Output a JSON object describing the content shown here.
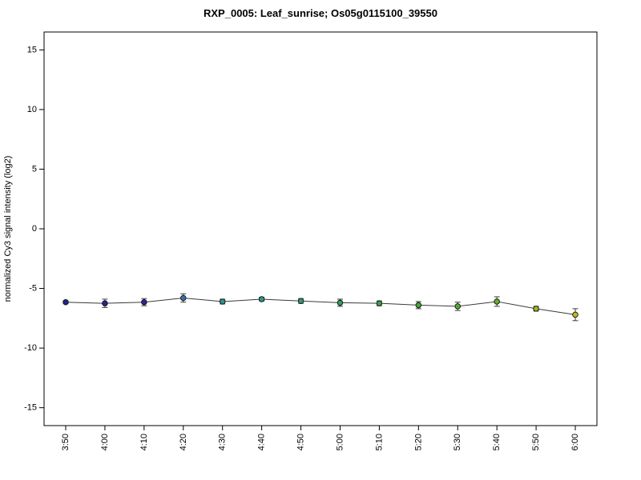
{
  "chart_data": {
    "type": "line",
    "title": "RXP_0005: Leaf_sunrise; Os05g0115100_39550",
    "xlabel": "",
    "ylabel": "normalized Cy3 signal intensity (log2)",
    "x": [
      "3:50",
      "4:00",
      "4:10",
      "4:20",
      "4:30",
      "4:40",
      "4:50",
      "5:00",
      "5:10",
      "5:20",
      "5:30",
      "5:40",
      "5:50",
      "6:00"
    ],
    "values": [
      -6.15,
      -6.25,
      -6.15,
      -5.8,
      -6.1,
      -5.9,
      -6.05,
      -6.2,
      -6.25,
      -6.4,
      -6.5,
      -6.1,
      -6.7,
      -7.2
    ],
    "errors": [
      0.1,
      0.35,
      0.3,
      0.35,
      0.2,
      0.15,
      0.2,
      0.3,
      0.2,
      0.3,
      0.35,
      0.4,
      0.2,
      0.5
    ],
    "point_colors": [
      "#24248F",
      "#24248F",
      "#28288F",
      "#3A6FA8",
      "#2F8F8F",
      "#2E9488",
      "#2F9A70",
      "#339E58",
      "#3AA244",
      "#45A637",
      "#55AA2E",
      "#68AD28",
      "#9BB322",
      "#C4B81C"
    ],
    "yticks": [
      -15,
      -10,
      -5,
      0,
      5,
      10,
      15
    ],
    "ylim": [
      -16.5,
      16.5
    ],
    "grid": false,
    "legend": "none",
    "line_color": "#3a3a3a",
    "error_bar_color": "#3a3a3a",
    "point_outline_color": "#101010",
    "axis_color": "#000000",
    "background": "#ffffff"
  }
}
